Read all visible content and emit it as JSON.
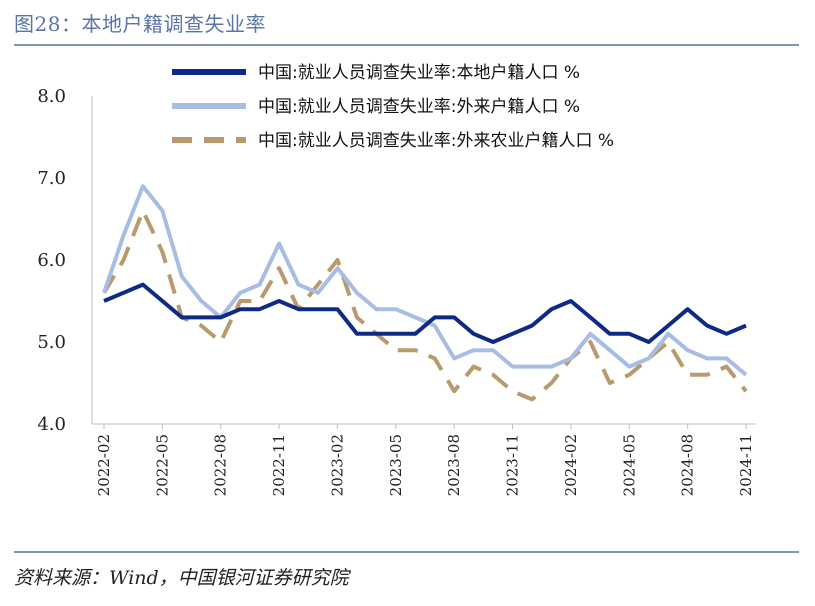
{
  "figure": {
    "title": "图28：本地户籍调查失业率",
    "source": "资料来源：Wind，中国银河证券研究院"
  },
  "colors": {
    "title": "#5b74a8",
    "rule": "#8093bb",
    "series_local": "#0d2a86",
    "series_migrant": "#a8bde3",
    "series_migrant_agri": "#b99a6c"
  },
  "chart_data": {
    "type": "line",
    "title": "",
    "xlabel": "",
    "ylabel": "",
    "ylim": [
      4.0,
      8.0
    ],
    "yticks": [
      "8.0",
      "7.0",
      "6.0",
      "5.0",
      "4.0"
    ],
    "grid": false,
    "legend_position": "top",
    "x": [
      "2022-02",
      "2022-03",
      "2022-04",
      "2022-05",
      "2022-06",
      "2022-07",
      "2022-08",
      "2022-09",
      "2022-10",
      "2022-11",
      "2022-12",
      "2023-01",
      "2023-02",
      "2023-03",
      "2023-04",
      "2023-05",
      "2023-06",
      "2023-07",
      "2023-08",
      "2023-09",
      "2023-10",
      "2023-11",
      "2023-12",
      "2024-01",
      "2024-02",
      "2024-03",
      "2024-04",
      "2024-05",
      "2024-06",
      "2024-07",
      "2024-08",
      "2024-09",
      "2024-10",
      "2024-11"
    ],
    "xtick_labels": [
      "2022-02",
      "2022-05",
      "2022-08",
      "2022-11",
      "2023-02",
      "2023-05",
      "2023-08",
      "2023-11",
      "2024-02",
      "2024-05",
      "2024-08",
      "2024-11"
    ],
    "series": [
      {
        "name": "中国:就业人员调查失业率:本地户籍人口 %",
        "style": "solid-thick",
        "color": "#0d2a86",
        "values": [
          5.5,
          5.6,
          5.7,
          5.5,
          5.3,
          5.3,
          5.3,
          5.4,
          5.4,
          5.5,
          5.4,
          5.4,
          5.4,
          5.1,
          5.1,
          5.1,
          5.1,
          5.3,
          5.3,
          5.1,
          5.0,
          5.1,
          5.2,
          5.4,
          5.5,
          5.3,
          5.1,
          5.1,
          5.0,
          5.2,
          5.4,
          5.2,
          5.1,
          5.2
        ]
      },
      {
        "name": "中国:就业人员调查失业率:外来户籍人口 %",
        "style": "solid",
        "color": "#a8bde3",
        "values": [
          5.6,
          6.3,
          6.9,
          6.6,
          5.8,
          5.5,
          5.3,
          5.6,
          5.7,
          6.2,
          5.7,
          5.6,
          5.9,
          5.6,
          5.4,
          5.4,
          5.3,
          5.2,
          4.8,
          4.9,
          4.9,
          4.7,
          4.7,
          4.7,
          4.8,
          5.1,
          4.9,
          4.7,
          4.8,
          5.1,
          4.9,
          4.8,
          4.8,
          4.6
        ]
      },
      {
        "name": "中国:就业人员调查失业率:外来农业户籍人口 %",
        "style": "dashed",
        "color": "#b99a6c",
        "values": [
          5.6,
          6.0,
          6.6,
          6.1,
          5.3,
          5.2,
          5.0,
          5.5,
          5.5,
          5.9,
          5.4,
          5.7,
          6.0,
          5.3,
          5.1,
          4.9,
          4.9,
          4.8,
          4.4,
          4.7,
          4.6,
          4.4,
          4.3,
          4.5,
          4.8,
          5.0,
          4.5,
          4.6,
          4.8,
          5.0,
          4.6,
          4.6,
          4.7,
          4.4
        ]
      }
    ]
  }
}
